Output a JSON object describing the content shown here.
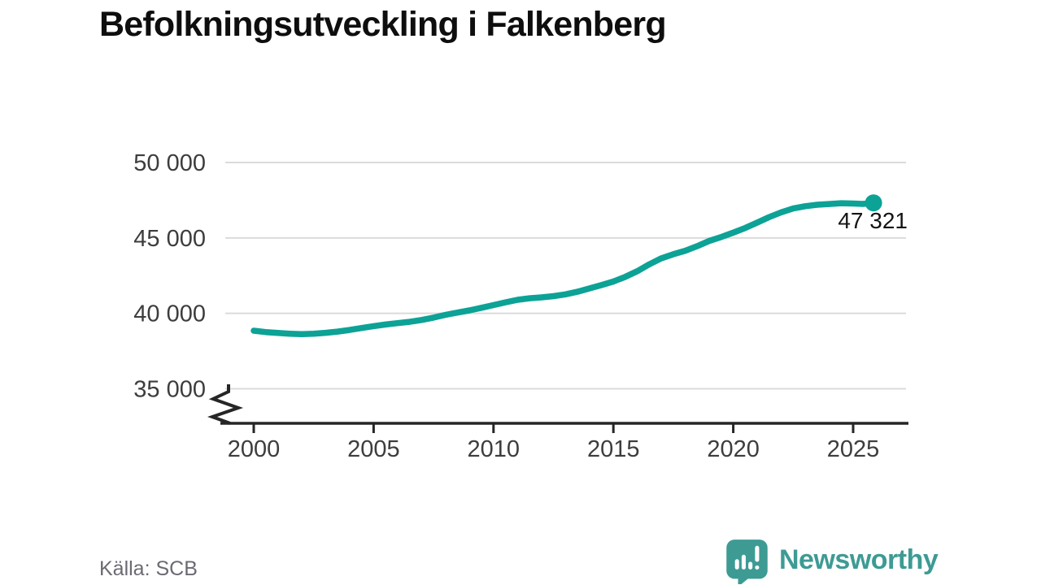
{
  "title": "Befolkningsutveckling i Falkenberg",
  "source_caption": "Källa: SCB",
  "branding": {
    "name": "Newsworthy",
    "color": "#3d9b94",
    "icon": "bar-chart-speech-bubble-icon"
  },
  "chart_data": {
    "type": "line",
    "title": "Befolkningsutveckling i Falkenberg",
    "xlabel": "",
    "ylabel": "",
    "ylim": [
      35000,
      50000
    ],
    "xlim": [
      2000,
      2027.3
    ],
    "grid": "horizontal",
    "axis_break": true,
    "y_ticks": [
      {
        "value": 50000,
        "label": "50 000"
      },
      {
        "value": 45000,
        "label": "45 000"
      },
      {
        "value": 40000,
        "label": "40 000"
      },
      {
        "value": 35000,
        "label": "35 000"
      }
    ],
    "x_ticks": [
      {
        "value": 2000,
        "label": "2000"
      },
      {
        "value": 2005,
        "label": "2005"
      },
      {
        "value": 2010,
        "label": "2010"
      },
      {
        "value": 2015,
        "label": "2015"
      },
      {
        "value": 2020,
        "label": "2020"
      },
      {
        "value": 2025,
        "label": "2025"
      }
    ],
    "end_value": 47321,
    "end_label": "47 321",
    "series": [
      {
        "name": "Befolkning i Falkenberg",
        "color": "#0da296",
        "points": [
          [
            2000,
            38850
          ],
          [
            2000.5,
            38760
          ],
          [
            2001,
            38700
          ],
          [
            2001.5,
            38650
          ],
          [
            2002,
            38620
          ],
          [
            2002.5,
            38650
          ],
          [
            2003,
            38710
          ],
          [
            2003.5,
            38790
          ],
          [
            2004,
            38900
          ],
          [
            2004.5,
            39030
          ],
          [
            2005,
            39150
          ],
          [
            2005.5,
            39260
          ],
          [
            2006,
            39350
          ],
          [
            2006.5,
            39440
          ],
          [
            2007,
            39560
          ],
          [
            2007.5,
            39720
          ],
          [
            2008,
            39900
          ],
          [
            2008.5,
            40050
          ],
          [
            2009,
            40200
          ],
          [
            2009.5,
            40370
          ],
          [
            2010,
            40550
          ],
          [
            2010.5,
            40730
          ],
          [
            2011,
            40900
          ],
          [
            2011.5,
            41000
          ],
          [
            2012,
            41060
          ],
          [
            2012.5,
            41140
          ],
          [
            2013,
            41260
          ],
          [
            2013.5,
            41430
          ],
          [
            2014,
            41650
          ],
          [
            2014.5,
            41870
          ],
          [
            2015,
            42110
          ],
          [
            2015.5,
            42420
          ],
          [
            2016,
            42800
          ],
          [
            2016.5,
            43250
          ],
          [
            2017,
            43650
          ],
          [
            2017.5,
            43920
          ],
          [
            2018,
            44150
          ],
          [
            2018.5,
            44460
          ],
          [
            2019,
            44800
          ],
          [
            2019.5,
            45060
          ],
          [
            2020,
            45350
          ],
          [
            2020.5,
            45660
          ],
          [
            2021,
            46020
          ],
          [
            2021.5,
            46380
          ],
          [
            2022,
            46700
          ],
          [
            2022.5,
            46950
          ],
          [
            2023,
            47100
          ],
          [
            2023.5,
            47200
          ],
          [
            2024,
            47250
          ],
          [
            2024.5,
            47300
          ],
          [
            2025,
            47280
          ],
          [
            2025.4,
            47255
          ],
          [
            2025.85,
            47321
          ]
        ]
      }
    ]
  }
}
